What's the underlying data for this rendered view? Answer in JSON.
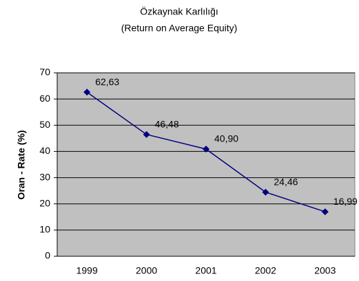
{
  "chart_data": {
    "type": "line",
    "title": "Özkaynak Karlılığı",
    "subtitle": "(Return on Average Equity)",
    "y_label": "Oran - Rate (%)",
    "categories": [
      "1999",
      "2000",
      "2001",
      "2002",
      "2003"
    ],
    "values": [
      62.63,
      46.48,
      40.9,
      24.46,
      16.99
    ],
    "value_labels": [
      "62,63",
      "46,48",
      "40,90",
      "24,46",
      "16,99"
    ],
    "color": "#000080",
    "background": "#c0c0c0",
    "ylim": [
      0,
      70
    ],
    "yticks": [
      0,
      10,
      20,
      30,
      40,
      50,
      60,
      70
    ],
    "grid": true
  }
}
